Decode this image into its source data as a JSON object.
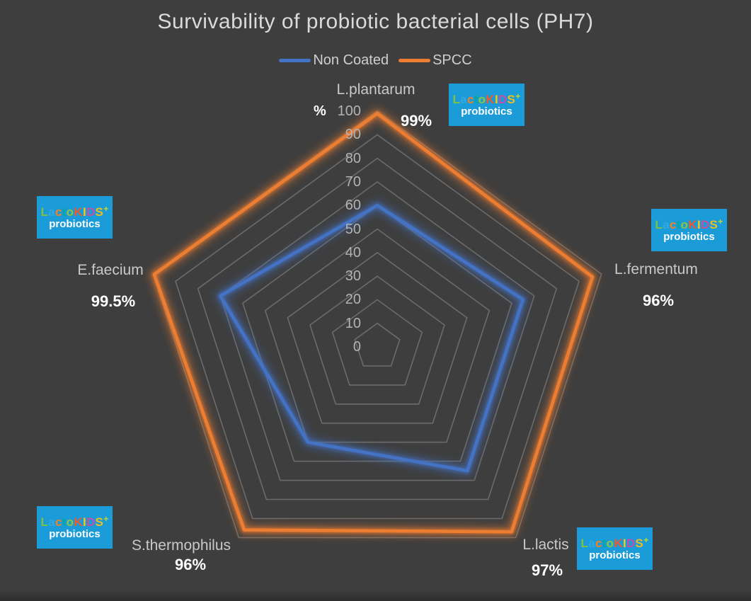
{
  "chart_data": {
    "type": "radar",
    "title": "Survivability of probiotic bacterial cells (PH7)",
    "categories": [
      "L.plantarum",
      "L.fermentum",
      "L.lactis",
      "S.thermophilus",
      "E.faecium"
    ],
    "series": [
      {
        "name": "Non Coated",
        "color": "#4472C4",
        "values": [
          60,
          65,
          65,
          50,
          70
        ]
      },
      {
        "name": "SPCC",
        "color": "#ED7D31",
        "values": [
          99,
          96,
          97,
          96,
          99.5
        ],
        "point_labels": [
          "99%",
          "96%",
          "97%",
          "96%",
          "99.5%"
        ]
      }
    ],
    "axis": {
      "min": 0,
      "max": 100,
      "step": 10,
      "unit": "%",
      "ticks": [
        0,
        10,
        20,
        30,
        40,
        50,
        60,
        70,
        80,
        90,
        100
      ]
    },
    "grid": "concentric-pentagons",
    "legend_position": "top-center"
  },
  "logo": {
    "background": "#1B9BD8",
    "letters": [
      {
        "ch": "L",
        "color": "#7FC241"
      },
      {
        "ch": "a",
        "color": "#35A8E0"
      },
      {
        "ch": "c",
        "color": "#F58220"
      },
      {
        "ch": "t",
        "color": "#00A79D"
      },
      {
        "ch": "o",
        "color": "#8CC63F"
      },
      {
        "ch": "K",
        "color": "#F0592B"
      },
      {
        "ch": "I",
        "color": "#F5C913"
      },
      {
        "ch": "D",
        "color": "#C44FA8"
      },
      {
        "ch": "S",
        "color": "#EFBE1D"
      }
    ],
    "plus": {
      "ch": "+",
      "color": "#C3D82E"
    },
    "line2": "probiotics"
  },
  "colors": {
    "background": "#3E3E3E",
    "grid_line": "#6B6B6B",
    "title_text": "#DADADA",
    "tick_text": "#B3B3B3",
    "category_text": "#C9C9C9",
    "value_text": "#FFFFFF",
    "legend_text": "#CFCFCF"
  }
}
